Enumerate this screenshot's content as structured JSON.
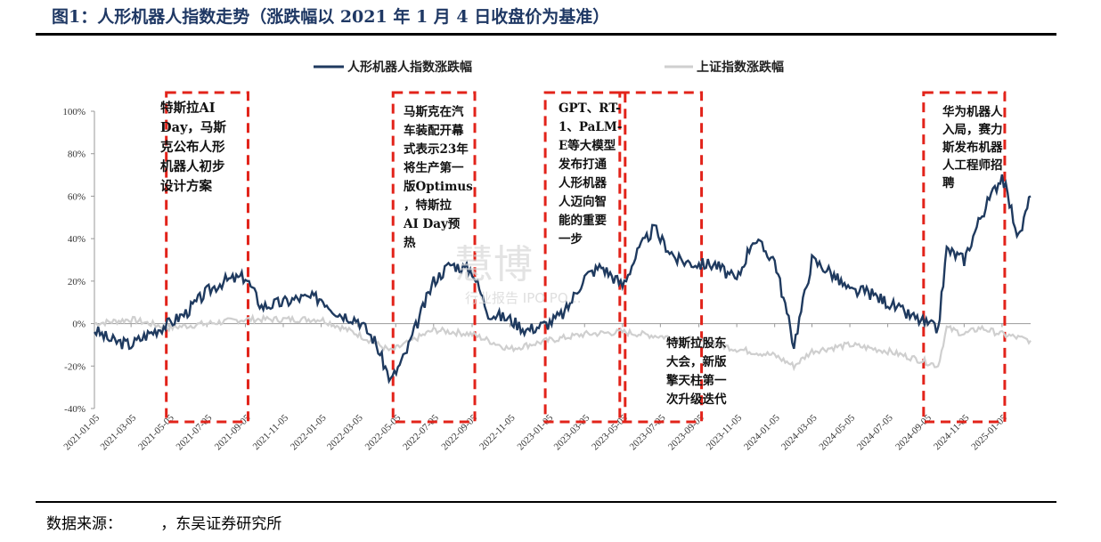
{
  "header": {
    "title": "图1：人形机器人指数走势（涨跌幅以 2021 年 1 月 4 日收盘价为基准）"
  },
  "footer": {
    "source": "数据来源：        ，东吴证券研究所"
  },
  "watermark": {
    "main": "慧博",
    "sub": "行业报告 IPO PO…"
  },
  "colors": {
    "humanoid": "#1f3a5f",
    "shanghai": "#cfcfcf",
    "box": "#e2231a"
  },
  "chart_data": {
    "type": "line",
    "title": "",
    "xlabel": "",
    "ylabel": "",
    "ylim": [
      -40,
      100
    ],
    "yticks": [
      "100%",
      "80%",
      "60%",
      "40%",
      "20%",
      "0%",
      "-20%",
      "-40%"
    ],
    "xticks": [
      "2021-01-05",
      "2021-03-05",
      "2021-05-05",
      "2021-07-05",
      "2021-09-05",
      "2021-11-05",
      "2022-01-05",
      "2022-03-05",
      "2022-05-05",
      "2022-07-05",
      "2022-09-05",
      "2022-11-05",
      "2023-01-05",
      "2023-03-05",
      "2023-05-05",
      "2023-07-05",
      "2023-09-05",
      "2023-11-05",
      "2024-01-05",
      "2024-03-05",
      "2024-05-05",
      "2024-07-05",
      "2024-09-05",
      "2024-11-05",
      "2025-01-05"
    ],
    "legend_position": "top",
    "series": [
      {
        "name": "人形机器人指数涨跌幅",
        "x": [
          "2021-01-05",
          "2021-02-01",
          "2021-03-05",
          "2021-04-01",
          "2021-05-05",
          "2021-06-01",
          "2021-07-05",
          "2021-08-01",
          "2021-09-05",
          "2021-10-01",
          "2021-11-05",
          "2021-12-01",
          "2022-01-05",
          "2022-02-01",
          "2022-03-05",
          "2022-04-01",
          "2022-04-27",
          "2022-05-20",
          "2022-06-15",
          "2022-07-05",
          "2022-08-01",
          "2022-09-05",
          "2022-10-01",
          "2022-11-05",
          "2022-12-01",
          "2023-01-05",
          "2023-02-01",
          "2023-03-05",
          "2023-04-01",
          "2023-05-05",
          "2023-06-01",
          "2023-06-25",
          "2023-07-05",
          "2023-08-01",
          "2023-09-05",
          "2023-10-01",
          "2023-11-05",
          "2023-12-01",
          "2024-01-05",
          "2024-02-05",
          "2024-03-05",
          "2024-04-01",
          "2024-05-05",
          "2024-06-01",
          "2024-07-05",
          "2024-08-01",
          "2024-09-05",
          "2024-09-24",
          "2024-10-08",
          "2024-11-05",
          "2024-12-01",
          "2025-01-05",
          "2025-02-01",
          "2025-02-20"
        ],
        "values": [
          -3,
          -8,
          -10,
          -5,
          0,
          5,
          15,
          20,
          22,
          8,
          10,
          12,
          12,
          5,
          2,
          -8,
          -27,
          -15,
          5,
          20,
          28,
          25,
          5,
          2,
          -3,
          0,
          5,
          22,
          27,
          18,
          35,
          45,
          40,
          30,
          28,
          28,
          20,
          40,
          30,
          -10,
          30,
          25,
          15,
          15,
          10,
          5,
          0,
          -3,
          35,
          30,
          50,
          70,
          40,
          60
        ]
      },
      {
        "name": "上证指数涨跌幅",
        "x": [
          "2021-01-05",
          "2021-03-05",
          "2021-05-05",
          "2021-07-05",
          "2021-09-05",
          "2021-11-05",
          "2022-01-05",
          "2022-03-05",
          "2022-04-27",
          "2022-07-05",
          "2022-09-05",
          "2022-11-05",
          "2023-01-05",
          "2023-03-05",
          "2023-05-05",
          "2023-07-05",
          "2023-09-05",
          "2023-11-05",
          "2024-01-05",
          "2024-02-05",
          "2024-03-05",
          "2024-05-05",
          "2024-07-05",
          "2024-09-05",
          "2024-09-24",
          "2024-10-08",
          "2024-11-05",
          "2024-12-01",
          "2025-01-05",
          "2025-02-20"
        ],
        "values": [
          0,
          2,
          -2,
          0,
          2,
          2,
          2,
          -5,
          -13,
          -3,
          -5,
          -12,
          -8,
          -5,
          -4,
          -6,
          -8,
          -12,
          -15,
          -20,
          -13,
          -10,
          -13,
          -18,
          -20,
          -2,
          -5,
          -2,
          -5,
          -8
        ]
      }
    ],
    "annotations": [
      {
        "x_start": "2021-05-05",
        "x_end": "2021-09-05",
        "text": [
          "特斯拉AI",
          "Day，马斯",
          "克公布人形",
          "机器人初步",
          "设计方案"
        ]
      },
      {
        "x_start": "2022-05-05",
        "x_end": "2022-09-05",
        "text": [
          "马斯克在汽",
          "车装配开幕",
          "式表示23年",
          "将生产第一",
          "版Optimus",
          "，特斯拉",
          "AI Day预",
          "热"
        ]
      },
      {
        "x_start": "2023-01-05",
        "x_end": "2023-05-05",
        "text": [
          "GPT、RT-",
          "1、PaLM-",
          "E等大模型",
          "发布打通",
          "人形机器",
          "人迈向智",
          "能的重要",
          "一步"
        ]
      },
      {
        "x_start": "2023-05-05",
        "x_end": "2023-09-05",
        "text": [
          "特斯拉股东",
          "大会，新版",
          "擎天柱第一",
          "次升级迭代"
        ]
      },
      {
        "x_start": "2024-09-05",
        "x_end": "2025-01-05",
        "text": [
          "华为机器人",
          "入局，赛力",
          "斯发布机器",
          "人工程师招",
          "聘"
        ]
      }
    ]
  }
}
